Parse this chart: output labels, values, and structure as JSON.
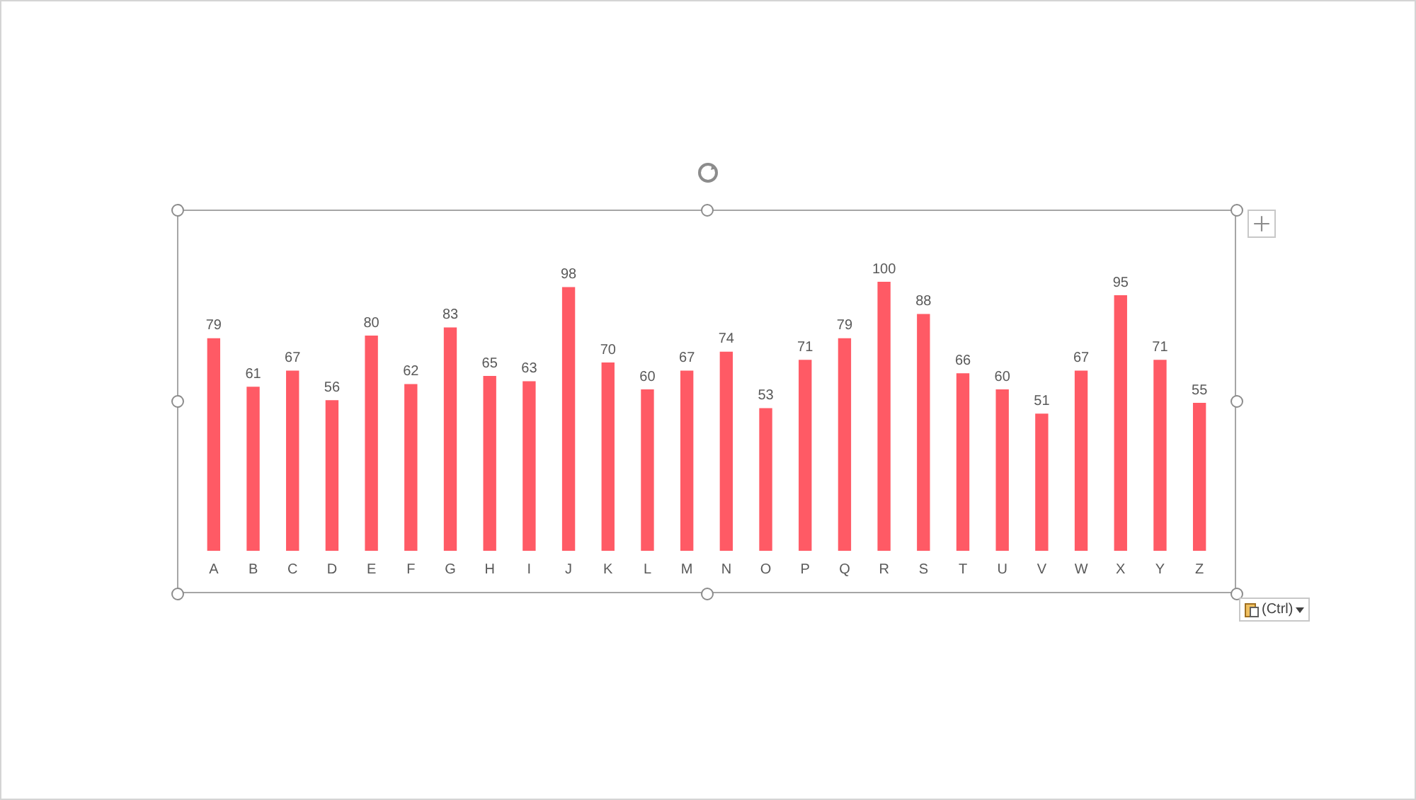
{
  "chart_data": {
    "type": "bar",
    "categories": [
      "A",
      "B",
      "C",
      "D",
      "E",
      "F",
      "G",
      "H",
      "I",
      "J",
      "K",
      "L",
      "M",
      "N",
      "O",
      "P",
      "Q",
      "R",
      "S",
      "T",
      "U",
      "V",
      "W",
      "X",
      "Y",
      "Z"
    ],
    "values": [
      79,
      61,
      67,
      56,
      80,
      62,
      83,
      65,
      63,
      98,
      70,
      60,
      67,
      74,
      53,
      71,
      79,
      100,
      88,
      66,
      60,
      51,
      67,
      95,
      71,
      55
    ],
    "color": "#ff5a65",
    "data_labels": true,
    "grid": false,
    "legend": false,
    "annotations": [
      "(Ctrl)"
    ]
  }
}
